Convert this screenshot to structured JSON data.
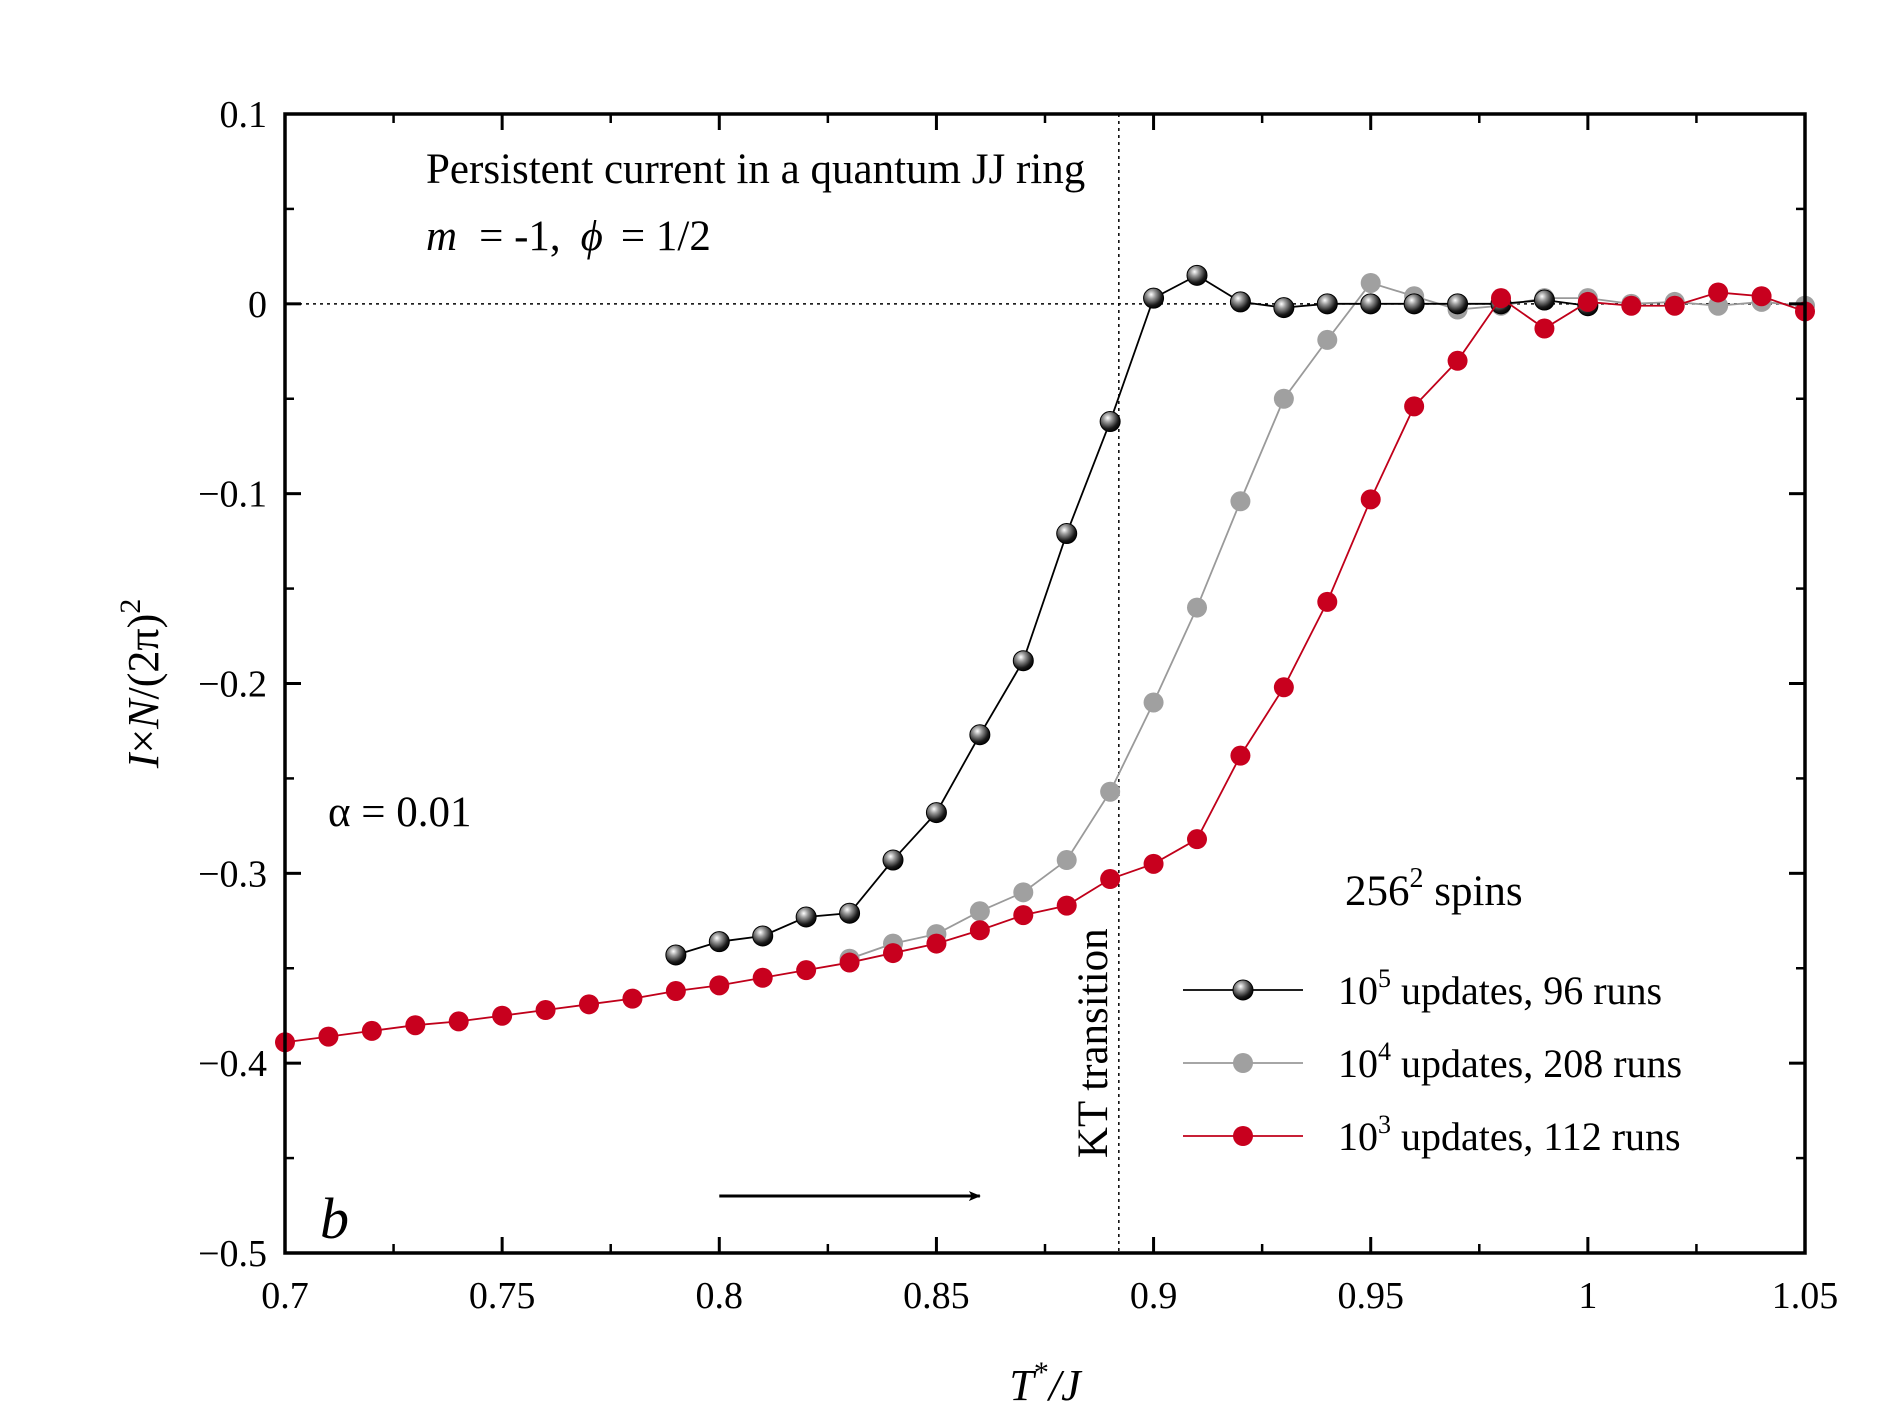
{
  "chart_data": {
    "type": "line",
    "title": "Persistent current in a quantum JJ ring",
    "subtitle": {
      "m_symbol": "m",
      "m_value": "= -1,",
      "phi_symbol": "ϕ",
      "phi_value": "= 1/2"
    },
    "xlabel": {
      "main": "T",
      "sup": "*",
      "rest": "/J"
    },
    "ylabel": {
      "i": "I",
      "times": "×",
      "n": "N",
      "rest": "/(2π)",
      "sup": "2"
    },
    "xlim": [
      0.7,
      1.05
    ],
    "ylim": [
      -0.5,
      0.1
    ],
    "xticks": [
      {
        "value": 0.7,
        "label": "0.7"
      },
      {
        "value": 0.75,
        "label": "0.75"
      },
      {
        "value": 0.8,
        "label": "0.8"
      },
      {
        "value": 0.85,
        "label": "0.85"
      },
      {
        "value": 0.9,
        "label": "0.9"
      },
      {
        "value": 0.95,
        "label": "0.95"
      },
      {
        "value": 1.0,
        "label": "1"
      },
      {
        "value": 1.05,
        "label": "1.05"
      }
    ],
    "yticks": [
      {
        "value": 0.1,
        "label": "0.1"
      },
      {
        "value": 0.0,
        "label": "0"
      },
      {
        "value": -0.1,
        "label": "−0.1"
      },
      {
        "value": -0.2,
        "label": "−0.2"
      },
      {
        "value": -0.3,
        "label": "−0.3"
      },
      {
        "value": -0.4,
        "label": "−0.4"
      },
      {
        "value": -0.5,
        "label": "−0.5"
      }
    ],
    "x_minor_step": 0.025,
    "y_minor_step": 0.05,
    "reference_lines": {
      "hline_y": 0,
      "vline_x": 0.892
    },
    "annotations": {
      "alpha": "α = 0.01",
      "panel": "b",
      "kt": "KT transition",
      "spins_base": "256",
      "spins_sup": "2",
      "spins_rest": " spins",
      "arrow_from_x": 0.8,
      "arrow_to_x": 0.86,
      "arrow_y": -0.47
    },
    "legend_position": "lower-right",
    "series": [
      {
        "name": "10^5 updates, 96 runs",
        "legend_base": "10",
        "legend_sup": "5",
        "legend_rest": " updates, 96 runs",
        "color": "#000000",
        "marker": "sphere-black",
        "x": [
          0.79,
          0.8,
          0.81,
          0.82,
          0.83,
          0.84,
          0.85,
          0.86,
          0.87,
          0.88,
          0.89,
          0.9,
          0.91,
          0.92,
          0.93,
          0.94,
          0.95,
          0.96,
          0.97,
          0.98,
          0.99,
          1.0
        ],
        "y": [
          -0.343,
          -0.336,
          -0.333,
          -0.323,
          -0.321,
          -0.293,
          -0.268,
          -0.227,
          -0.188,
          -0.121,
          -0.062,
          0.003,
          0.015,
          0.001,
          -0.002,
          0.0,
          0.0,
          0.0,
          0.0,
          0.0,
          0.002,
          -0.001
        ]
      },
      {
        "name": "10^4 updates, 208 runs",
        "legend_base": "10",
        "legend_sup": "4",
        "legend_rest": " updates, 208 runs",
        "color": "#9a9a9a",
        "marker": "circle-gray",
        "x": [
          0.83,
          0.84,
          0.85,
          0.86,
          0.87,
          0.88,
          0.89,
          0.9,
          0.91,
          0.92,
          0.93,
          0.94,
          0.95,
          0.96,
          0.97,
          0.98,
          0.99,
          1.0,
          1.01,
          1.02,
          1.03,
          1.04,
          1.05
        ],
        "y": [
          -0.345,
          -0.337,
          -0.332,
          -0.32,
          -0.31,
          -0.293,
          -0.257,
          -0.21,
          -0.16,
          -0.104,
          -0.05,
          -0.019,
          0.011,
          0.004,
          -0.003,
          -0.001,
          0.003,
          0.003,
          0.0,
          0.001,
          -0.001,
          0.001,
          -0.001
        ]
      },
      {
        "name": "10^3 updates, 112 runs",
        "legend_base": "10",
        "legend_sup": "3",
        "legend_rest": " updates, 112 runs",
        "color": "#c0001a",
        "marker": "circle-red",
        "x": [
          0.7,
          0.71,
          0.72,
          0.73,
          0.74,
          0.75,
          0.76,
          0.77,
          0.78,
          0.79,
          0.8,
          0.81,
          0.82,
          0.83,
          0.84,
          0.85,
          0.86,
          0.87,
          0.88,
          0.89,
          0.9,
          0.91,
          0.92,
          0.93,
          0.94,
          0.95,
          0.96,
          0.97,
          0.98,
          0.99,
          1.0,
          1.01,
          1.02,
          1.03,
          1.04,
          1.05
        ],
        "y": [
          -0.389,
          -0.386,
          -0.383,
          -0.38,
          -0.378,
          -0.375,
          -0.372,
          -0.369,
          -0.366,
          -0.362,
          -0.359,
          -0.355,
          -0.351,
          -0.347,
          -0.342,
          -0.337,
          -0.33,
          -0.322,
          -0.317,
          -0.303,
          -0.295,
          -0.282,
          -0.238,
          -0.202,
          -0.157,
          -0.103,
          -0.054,
          -0.03,
          0.003,
          -0.013,
          0.001,
          -0.001,
          -0.001,
          0.006,
          0.004,
          -0.004
        ]
      }
    ]
  }
}
